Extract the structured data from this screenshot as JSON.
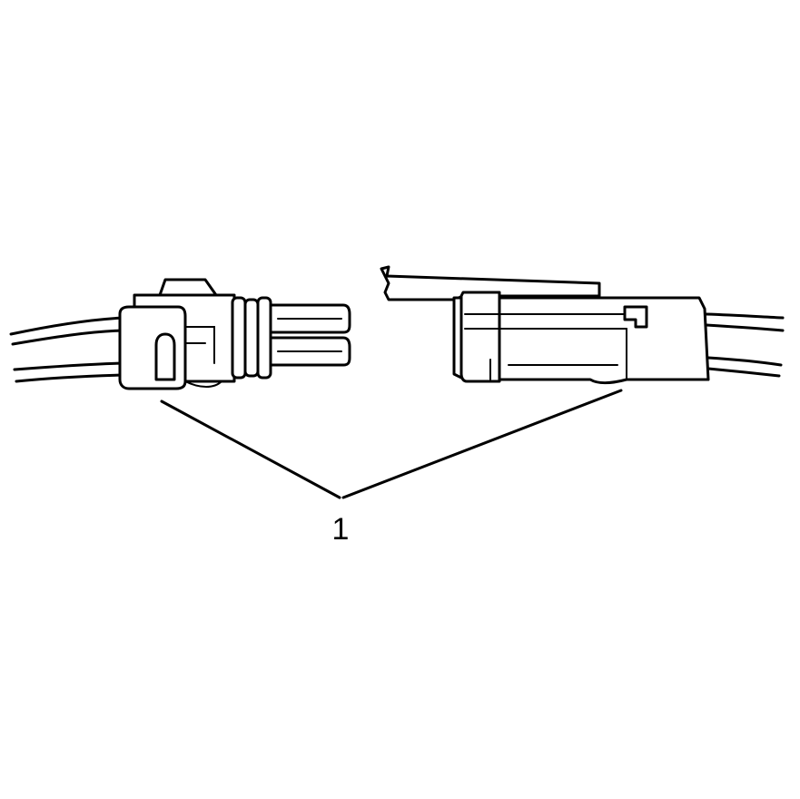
{
  "diagram": {
    "callout": {
      "label": "1"
    },
    "colors": {
      "line": "#000000",
      "background": "#ffffff"
    }
  }
}
